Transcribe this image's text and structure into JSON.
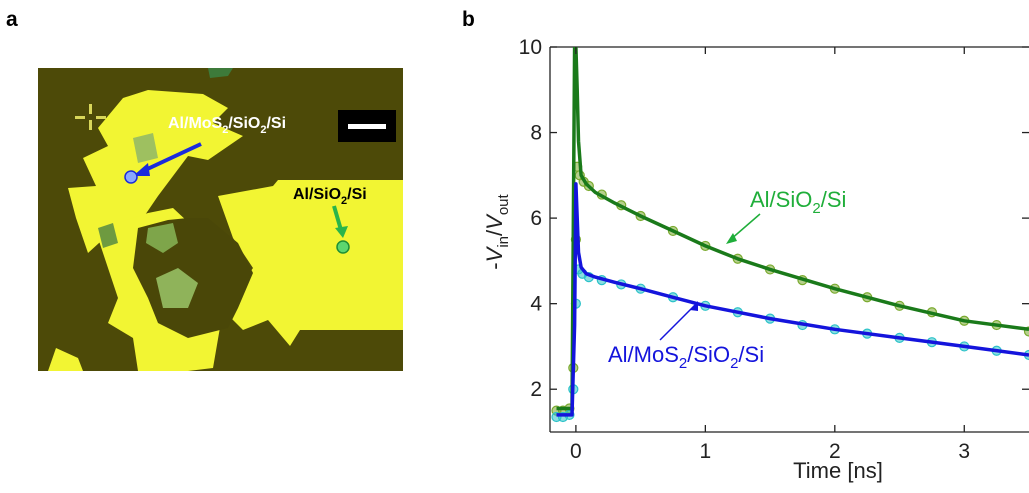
{
  "panels": {
    "a_label": "a",
    "b_label": "b"
  },
  "micrograph": {
    "label_device1_base": "Al/MoS",
    "label_device1_sub1": "2",
    "label_device1_mid": "/SiO",
    "label_device1_sub2": "2",
    "label_device1_end": "/Si",
    "label_device2_base": "Al/SiO",
    "label_device2_sub": "2",
    "label_device2_end": "/Si",
    "colors": {
      "background": "#4d4a08",
      "flake": "#f2f533",
      "arrow1": "#1a2bdc",
      "arrow2": "#2ab54a"
    }
  },
  "chart_data": {
    "type": "line",
    "xlabel": "Time [ns]",
    "ylabel_parts": {
      "prefix": "-",
      "v1": "V",
      "sub1": "in",
      "slash": "/",
      "v2": "V",
      "sub2": "out"
    },
    "xlim": [
      -0.2,
      3.5
    ],
    "ylim": [
      1,
      10
    ],
    "xticks": [
      0,
      1,
      2,
      3
    ],
    "yticks": [
      2,
      4,
      6,
      8,
      10
    ],
    "grid": false,
    "series": [
      {
        "name": "Al/SiO2/Si",
        "label_parts": {
          "base": "Al/SiO",
          "sub": "2",
          "end": "/Si"
        },
        "fit_color": "#1a7a1a",
        "data_color": "#7aaa2e",
        "fit": {
          "x": [
            -0.15,
            -0.03,
            -0.01,
            0.0,
            0.01,
            0.02,
            0.04,
            0.08,
            0.15,
            0.3,
            0.5,
            0.75,
            1.0,
            1.25,
            1.5,
            2.0,
            2.5,
            3.0,
            3.5
          ],
          "y": [
            1.55,
            1.55,
            10.0,
            10.0,
            9.0,
            7.8,
            7.0,
            6.8,
            6.6,
            6.35,
            6.05,
            5.7,
            5.35,
            5.05,
            4.8,
            4.35,
            3.95,
            3.6,
            3.4
          ]
        },
        "data": {
          "x": [
            -0.15,
            -0.1,
            -0.05,
            -0.02,
            0.0,
            0.01,
            0.03,
            0.06,
            0.1,
            0.2,
            0.35,
            0.5,
            0.75,
            1.0,
            1.25,
            1.5,
            1.75,
            2.0,
            2.25,
            2.5,
            2.75,
            3.0,
            3.25,
            3.5
          ],
          "y": [
            1.5,
            1.5,
            1.55,
            2.5,
            5.5,
            7.2,
            7.0,
            6.85,
            6.75,
            6.55,
            6.3,
            6.05,
            5.7,
            5.35,
            5.05,
            4.8,
            4.55,
            4.35,
            4.15,
            3.95,
            3.8,
            3.6,
            3.5,
            3.35
          ]
        }
      },
      {
        "name": "Al/MoS2/SiO2/Si",
        "label_parts": {
          "base": "Al/MoS",
          "sub1": "2",
          "mid": "/SiO",
          "sub2": "2",
          "end": "/Si"
        },
        "fit_color": "#1414dc",
        "data_color": "#2cc2c8",
        "fit": {
          "x": [
            -0.15,
            -0.03,
            -0.01,
            0.0,
            0.01,
            0.02,
            0.04,
            0.08,
            0.15,
            0.3,
            0.5,
            0.75,
            1.0,
            1.25,
            1.5,
            2.0,
            2.5,
            3.0,
            3.5
          ],
          "y": [
            1.4,
            1.4,
            3.5,
            6.8,
            6.0,
            5.2,
            4.85,
            4.7,
            4.62,
            4.5,
            4.35,
            4.15,
            3.95,
            3.8,
            3.65,
            3.4,
            3.2,
            3.0,
            2.8
          ]
        },
        "data": {
          "x": [
            -0.15,
            -0.1,
            -0.05,
            -0.02,
            0.0,
            0.02,
            0.05,
            0.1,
            0.2,
            0.35,
            0.5,
            0.75,
            1.0,
            1.25,
            1.5,
            1.75,
            2.0,
            2.25,
            2.5,
            2.75,
            3.0,
            3.25,
            3.5
          ],
          "y": [
            1.35,
            1.35,
            1.4,
            2.0,
            4.0,
            4.8,
            4.7,
            4.62,
            4.55,
            4.45,
            4.35,
            4.15,
            3.95,
            3.8,
            3.65,
            3.5,
            3.4,
            3.3,
            3.2,
            3.1,
            3.0,
            2.9,
            2.8
          ]
        }
      }
    ]
  }
}
